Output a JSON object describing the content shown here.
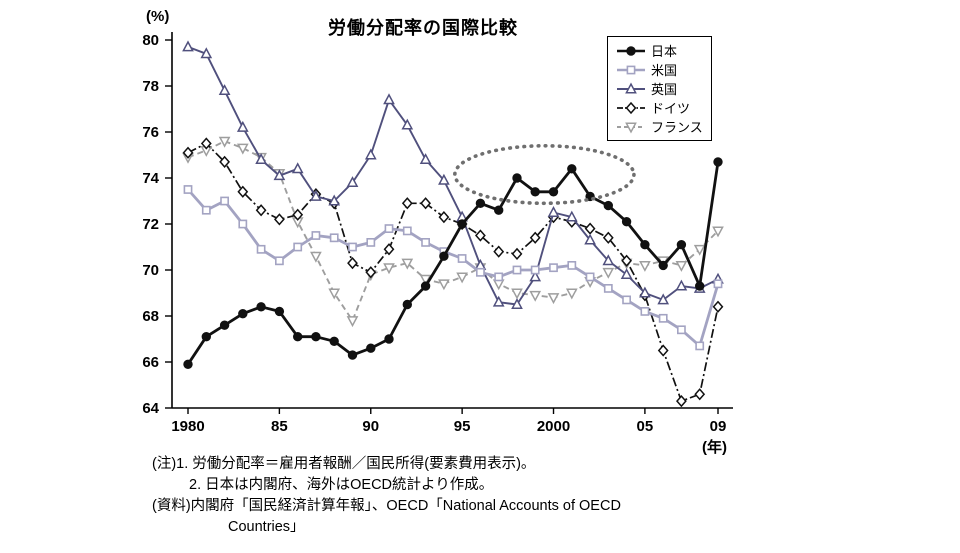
{
  "title": "労働分配率の国際比較",
  "axes": {
    "y_unit": "(%)",
    "x_unit": "(年)",
    "y_ticks": [
      80,
      78,
      76,
      74,
      72,
      70,
      68,
      66,
      64
    ],
    "x_ticks": [
      {
        "year": 1980,
        "label": "1980"
      },
      {
        "year": 1985,
        "label": "85"
      },
      {
        "year": 1990,
        "label": "90"
      },
      {
        "year": 1995,
        "label": "95"
      },
      {
        "year": 2000,
        "label": "2000"
      },
      {
        "year": 2005,
        "label": "05"
      },
      {
        "year": 2009,
        "label": "09"
      }
    ]
  },
  "chart_data": {
    "type": "line",
    "title": "労働分配率の国際比較",
    "xlabel": "年",
    "ylabel": "%",
    "xlim": [
      1980,
      2009
    ],
    "ylim": [
      64,
      80
    ],
    "grid": false,
    "legend_position": "top-right-inside",
    "x": [
      1980,
      1981,
      1982,
      1983,
      1984,
      1985,
      1986,
      1987,
      1988,
      1989,
      1990,
      1991,
      1992,
      1993,
      1994,
      1995,
      1996,
      1997,
      1998,
      1999,
      2000,
      2001,
      2002,
      2003,
      2004,
      2005,
      2006,
      2007,
      2008,
      2009
    ],
    "series": [
      {
        "id": "japan",
        "name": "日本",
        "color": "#111111",
        "marker": "circle-filled",
        "line": "solid",
        "line_width": 2.8,
        "values": [
          65.9,
          67.1,
          67.6,
          68.1,
          68.4,
          68.2,
          67.1,
          67.1,
          66.9,
          66.3,
          66.6,
          67.0,
          68.5,
          69.3,
          70.6,
          72.0,
          72.9,
          72.6,
          74.0,
          73.4,
          73.4,
          74.4,
          73.2,
          72.8,
          72.1,
          71.1,
          70.2,
          71.1,
          69.3,
          74.7
        ]
      },
      {
        "id": "usa",
        "name": "米国",
        "color": "#a3a3c2",
        "marker": "square-open",
        "line": "solid",
        "line_width": 2.8,
        "values": [
          73.5,
          72.6,
          73.0,
          72.0,
          70.9,
          70.4,
          71.0,
          71.5,
          71.4,
          71.0,
          71.2,
          71.8,
          71.7,
          71.2,
          70.8,
          70.5,
          69.9,
          69.7,
          70.0,
          70.0,
          70.1,
          70.2,
          69.7,
          69.2,
          68.7,
          68.2,
          67.9,
          67.4,
          66.7,
          69.4
        ]
      },
      {
        "id": "uk",
        "name": "英国",
        "color": "#50507d",
        "marker": "triangle-open",
        "line": "solid",
        "line_width": 1.9,
        "values": [
          79.7,
          79.4,
          77.8,
          76.2,
          74.8,
          74.1,
          74.4,
          73.2,
          73.0,
          73.8,
          75.0,
          77.4,
          76.3,
          74.8,
          73.9,
          72.3,
          70.2,
          68.6,
          68.5,
          69.7,
          72.5,
          72.3,
          71.3,
          70.4,
          69.8,
          69.0,
          68.7,
          69.3,
          69.2,
          69.6
        ]
      },
      {
        "id": "germany",
        "name": "ドイツ",
        "color": "#111111",
        "marker": "diamond-open",
        "line": "dashdot",
        "line_width": 1.7,
        "values": [
          75.1,
          75.5,
          74.7,
          73.4,
          72.6,
          72.2,
          72.4,
          73.3,
          72.9,
          70.3,
          69.9,
          70.9,
          72.9,
          72.9,
          72.3,
          72.0,
          71.5,
          70.8,
          70.7,
          71.4,
          72.3,
          72.1,
          71.8,
          71.4,
          70.4,
          68.9,
          66.5,
          64.3,
          64.6,
          68.4
        ]
      },
      {
        "id": "france",
        "name": "フランス",
        "color": "#9e9e9e",
        "marker": "triangle-down-open",
        "line": "dashed",
        "line_width": 1.9,
        "values": [
          74.9,
          75.2,
          75.6,
          75.3,
          74.9,
          74.2,
          72.1,
          70.6,
          69.0,
          67.8,
          69.8,
          70.1,
          70.3,
          69.6,
          69.4,
          69.7,
          70.1,
          69.4,
          69.0,
          68.9,
          68.8,
          69.0,
          69.5,
          69.9,
          70.3,
          70.2,
          70.4,
          70.2,
          70.9,
          71.7
        ]
      }
    ],
    "annotation": {
      "shape": "ellipse",
      "x_center": 1999.5,
      "y_center": 74.15,
      "x_radius_years": 4.9,
      "y_radius": 1.25,
      "style": "dotted",
      "color": "#6f6f6f",
      "meaning": "highlights Japan's elevated labor share around 1996-2003"
    }
  },
  "notes": {
    "line1": "(注)1. 労働分配率＝雇用者報酬／国民所得(要素費用表示)。",
    "line2": "2. 日本は内閣府、海外はOECD統計より作成。",
    "line3": "(資料)内閣府「国民経済計算年報」、OECD「National Accounts of OECD",
    "line4": "Countries」"
  }
}
